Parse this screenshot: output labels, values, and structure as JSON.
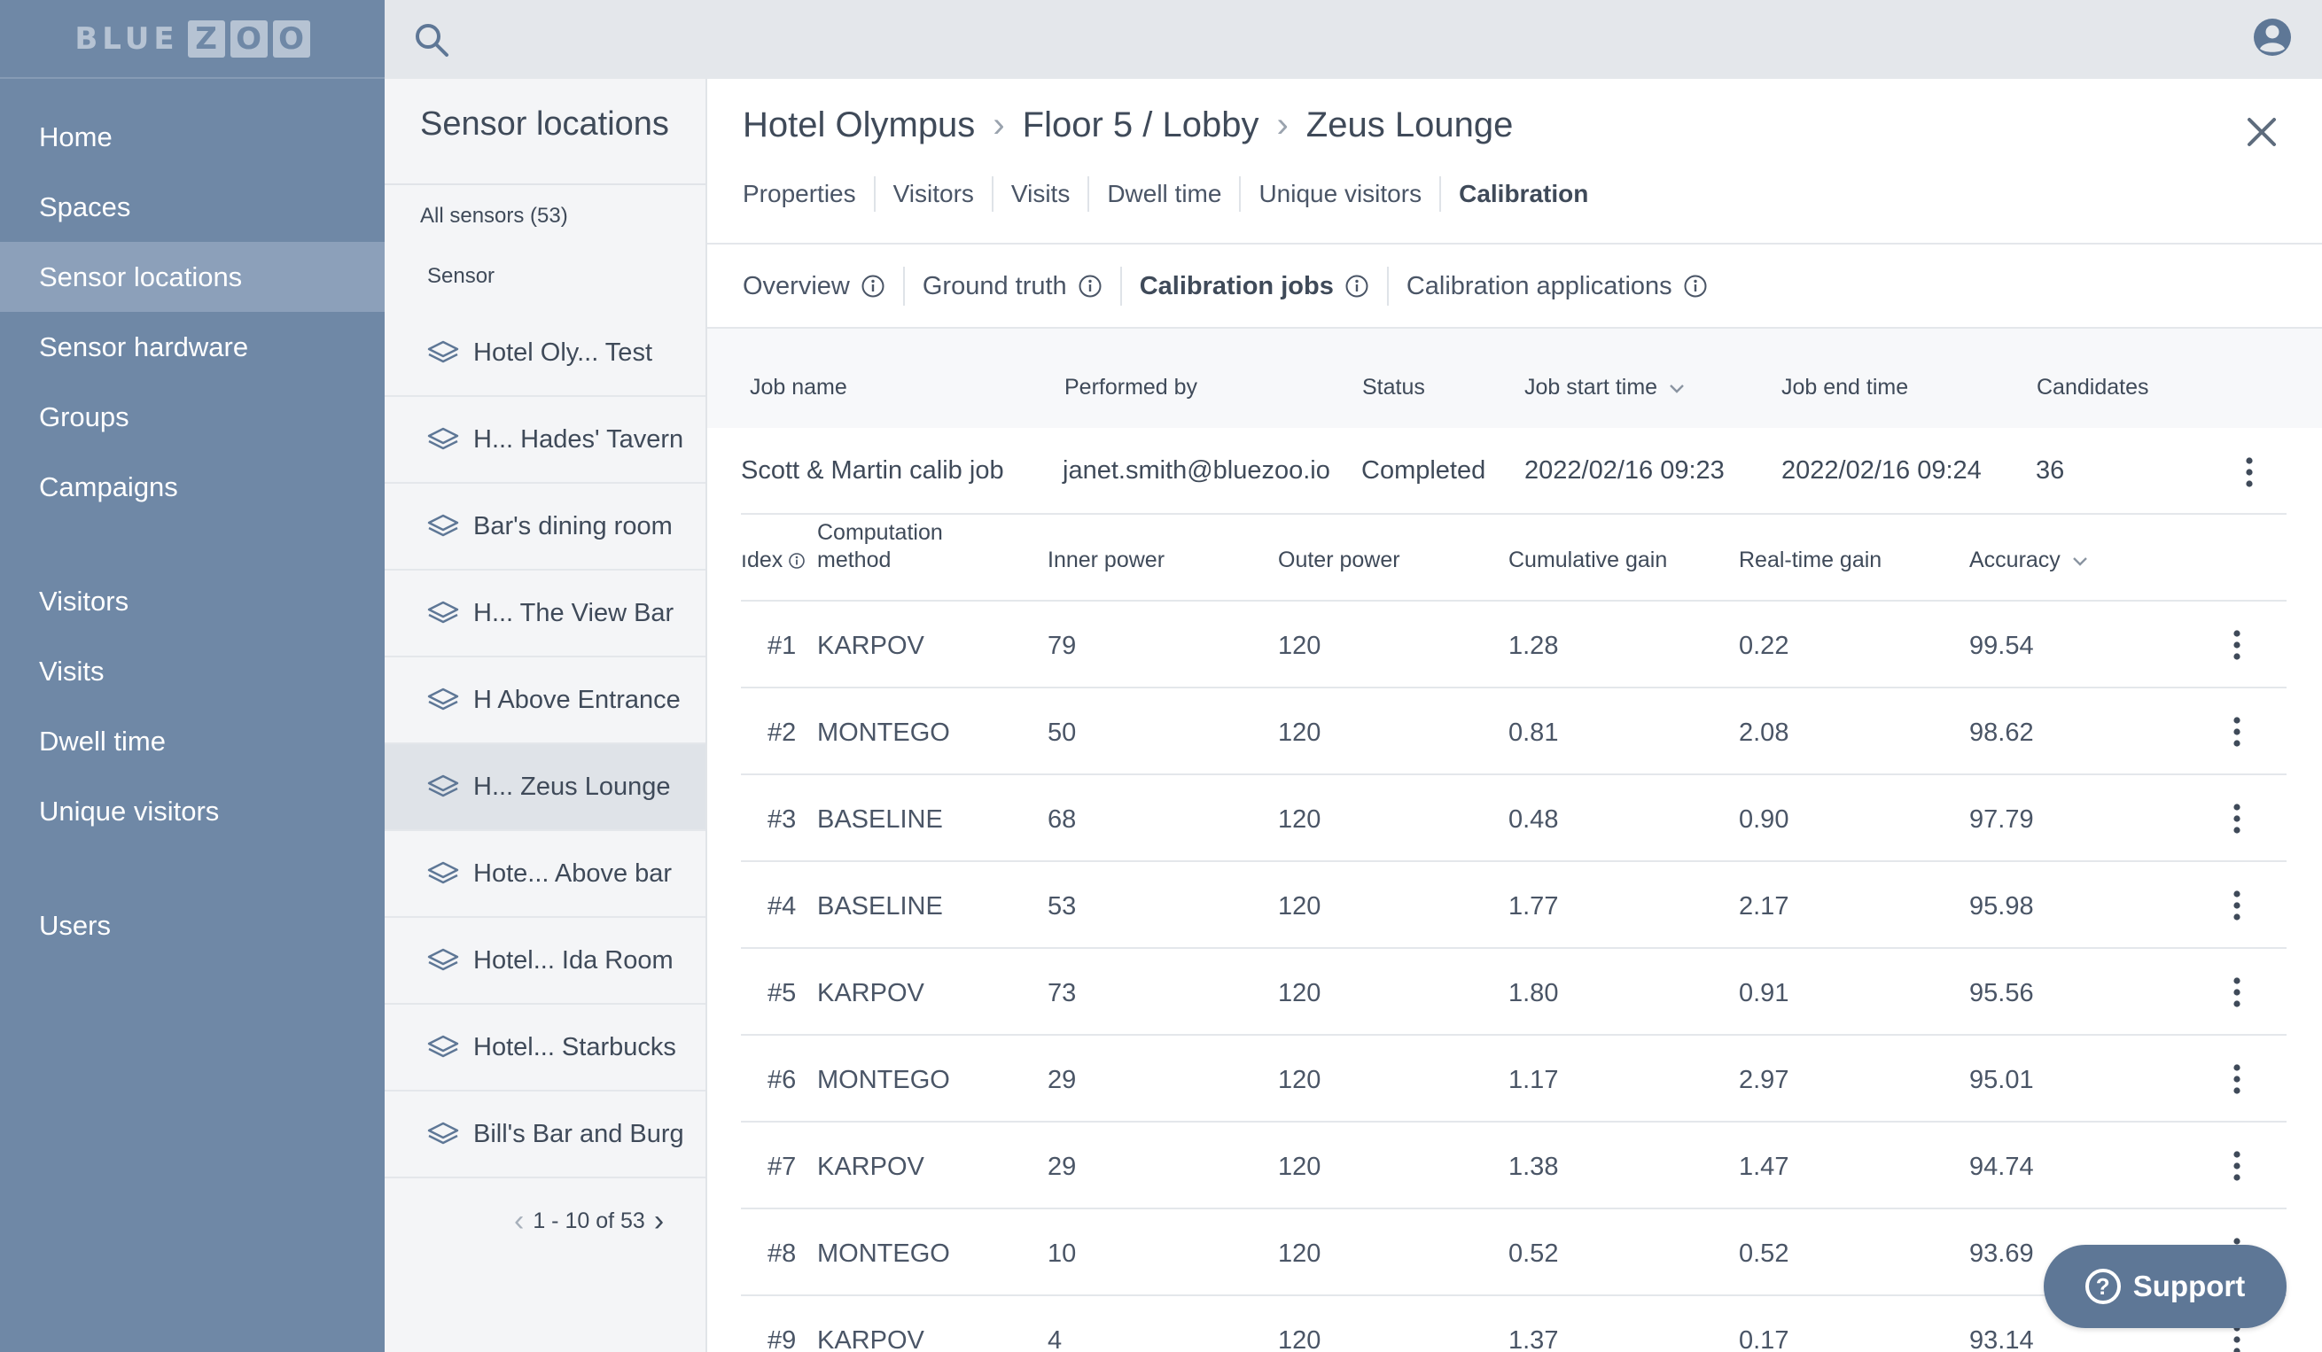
{
  "logo": {
    "blue": "BLUE",
    "zoo": [
      "Z",
      "O",
      "O"
    ]
  },
  "nav": {
    "items": [
      {
        "label": "Home"
      },
      {
        "label": "Spaces"
      },
      {
        "label": "Sensor locations",
        "active": true
      },
      {
        "label": "Sensor hardware"
      },
      {
        "label": "Groups"
      },
      {
        "label": "Campaigns"
      },
      {
        "label": "Visitors"
      },
      {
        "label": "Visits"
      },
      {
        "label": "Dwell time"
      },
      {
        "label": "Unique visitors"
      },
      {
        "label": "Users"
      }
    ]
  },
  "list": {
    "title": "Sensor locations",
    "all_sensors": "All sensors (53)",
    "column": "Sensor",
    "rows": [
      "Hotel Oly...    Test",
      "H...  Hades' Tavern",
      " Bar's dining room",
      "H...   The View Bar",
      "H  Above Entrance",
      "H...   Zeus Lounge",
      "Hote...  Above bar",
      "Hotel...  Ida Room",
      "Hotel...  Starbucks",
      " Bill's Bar and Burg"
    ],
    "active_index": 5,
    "pager": "1 - 10 of 53"
  },
  "breadcrumb": [
    "Hotel Olympus",
    "Floor 5 / Lobby",
    "Zeus Lounge"
  ],
  "tabs": [
    "Properties",
    "Visitors",
    "Visits",
    "Dwell time",
    "Unique visitors",
    "Calibration"
  ],
  "subtabs": [
    "Overview",
    "Ground truth",
    "Calibration jobs",
    "Calibration applications"
  ],
  "jobs": {
    "headers": {
      "job_name": "Job name",
      "performed_by": "Performed by",
      "status": "Status",
      "start": "Job start time",
      "end": "Job end time",
      "candidates": "Candidates"
    },
    "row": {
      "job_name": "Scott & Martin calib job",
      "performed_by": "janet.smith@bluezoo.io",
      "status": "Completed",
      "start": "2022/02/16 09:23",
      "end": "2022/02/16 09:24",
      "candidates": "36"
    }
  },
  "candidates": {
    "headers": {
      "index": "ıdex",
      "method_line1": "Computation",
      "method_line2": "method",
      "inner": "Inner power",
      "outer": "Outer power",
      "cumulative": "Cumulative gain",
      "realtime": "Real-time gain",
      "accuracy": "Accuracy"
    },
    "rows": [
      {
        "index": "#1",
        "method": "KARPOV",
        "inner": "79",
        "outer": "120",
        "cumulative": "1.28",
        "realtime": "0.22",
        "accuracy": "99.54"
      },
      {
        "index": "#2",
        "method": "MONTEGO",
        "inner": "50",
        "outer": "120",
        "cumulative": "0.81",
        "realtime": "2.08",
        "accuracy": "98.62"
      },
      {
        "index": "#3",
        "method": "BASELINE",
        "inner": "68",
        "outer": "120",
        "cumulative": "0.48",
        "realtime": "0.90",
        "accuracy": "97.79"
      },
      {
        "index": "#4",
        "method": "BASELINE",
        "inner": "53",
        "outer": "120",
        "cumulative": "1.77",
        "realtime": "2.17",
        "accuracy": "95.98"
      },
      {
        "index": "#5",
        "method": "KARPOV",
        "inner": "73",
        "outer": "120",
        "cumulative": "1.80",
        "realtime": "0.91",
        "accuracy": "95.56"
      },
      {
        "index": "#6",
        "method": "MONTEGO",
        "inner": "29",
        "outer": "120",
        "cumulative": "1.17",
        "realtime": "2.97",
        "accuracy": "95.01"
      },
      {
        "index": "#7",
        "method": "KARPOV",
        "inner": "29",
        "outer": "120",
        "cumulative": "1.38",
        "realtime": "1.47",
        "accuracy": "94.74"
      },
      {
        "index": "#8",
        "method": "MONTEGO",
        "inner": "10",
        "outer": "120",
        "cumulative": "0.52",
        "realtime": "0.52",
        "accuracy": "93.69"
      },
      {
        "index": "#9",
        "method": "KARPOV",
        "inner": "4",
        "outer": "120",
        "cumulative": "1.37",
        "realtime": "0.17",
        "accuracy": "93.14"
      }
    ]
  },
  "support": {
    "label": "Support",
    "glyph": "?"
  },
  "colors": {
    "sidebar": "#6f88a6",
    "sidebar_active": "#8ca0ba",
    "topbar": "#e4e7eb",
    "support": "#5e7796"
  }
}
